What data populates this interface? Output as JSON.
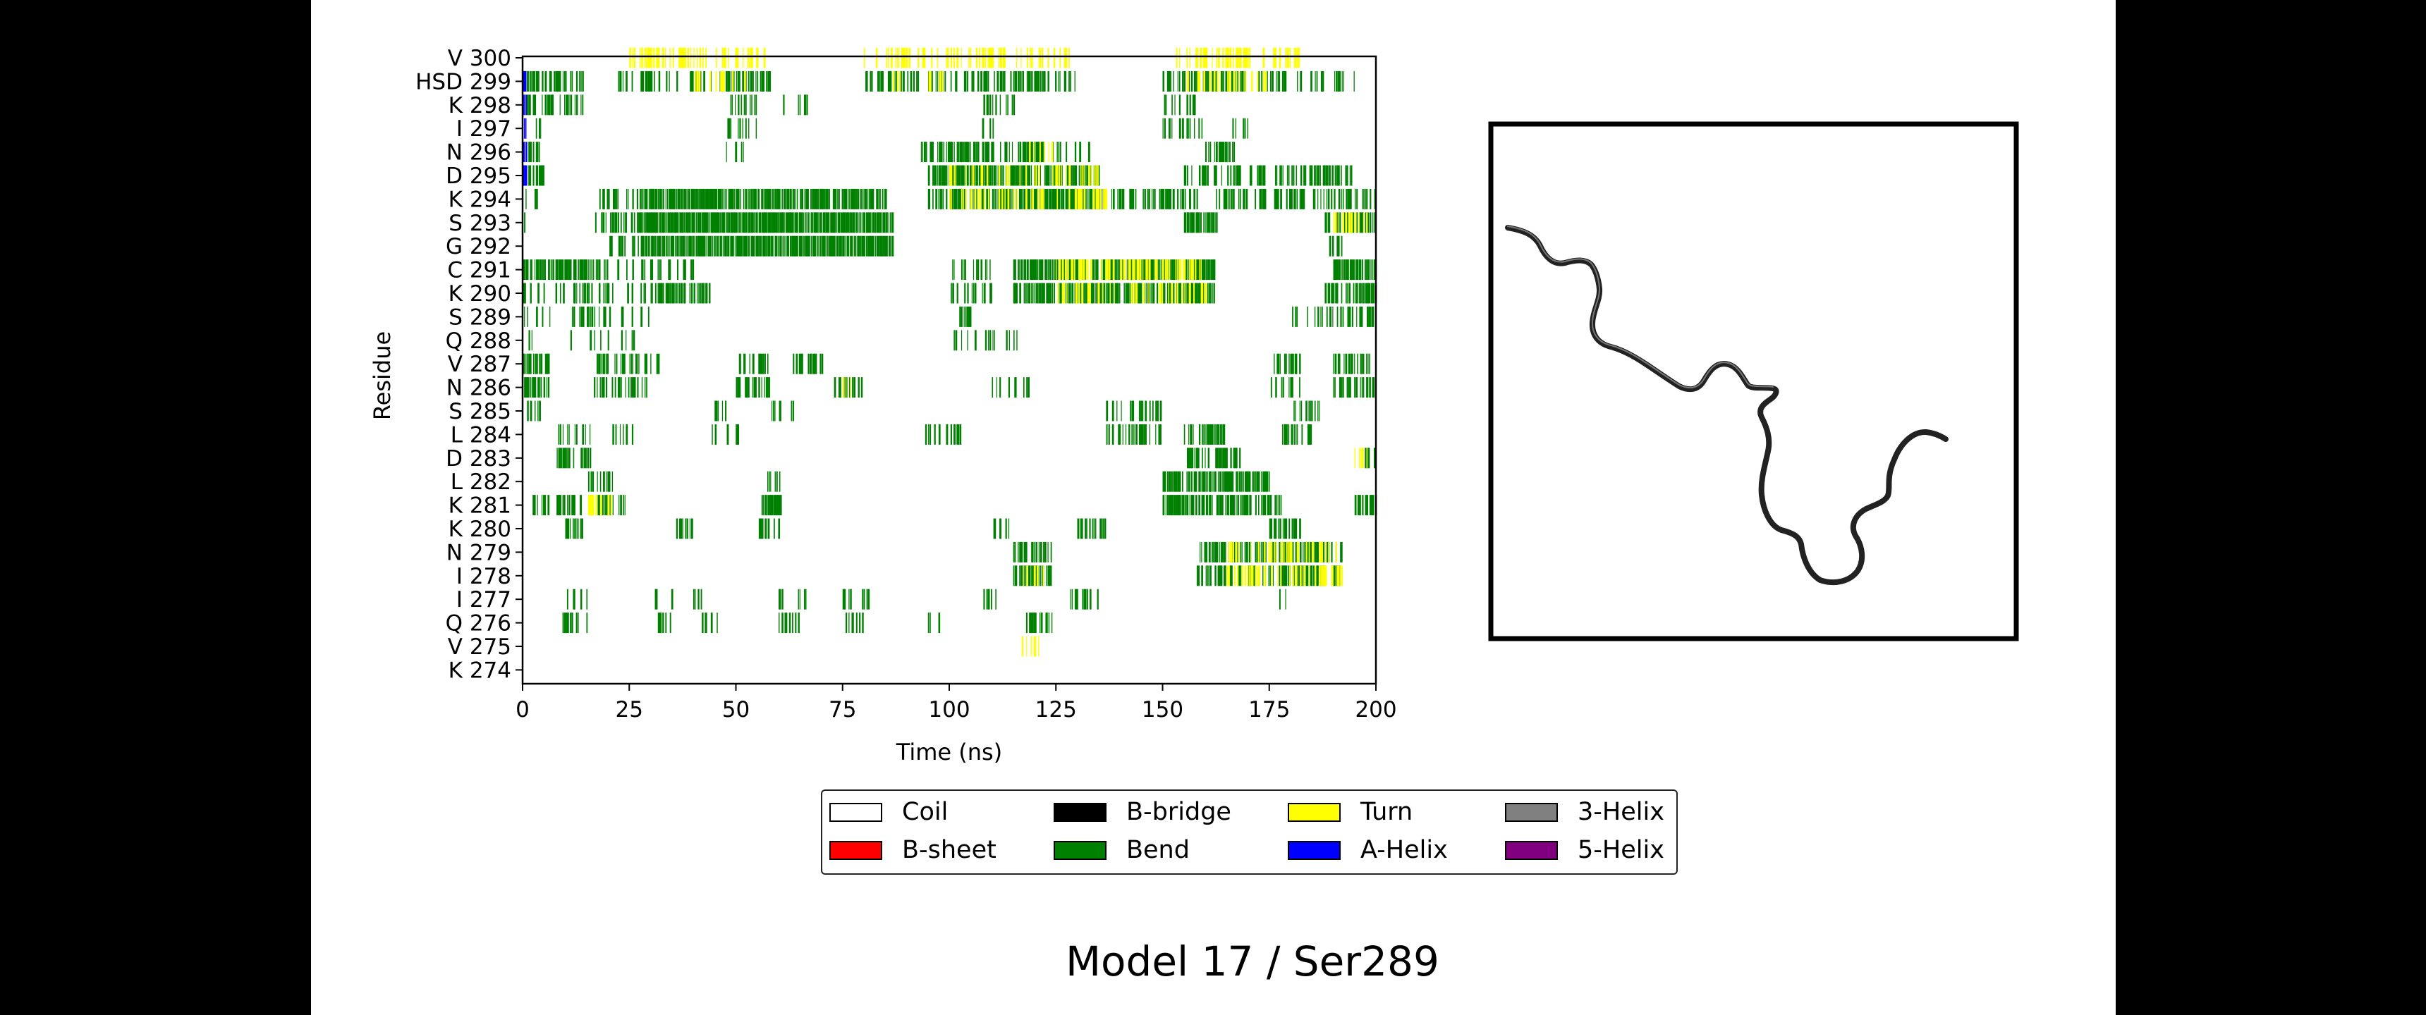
{
  "page_title": "Model 17 / Ser289",
  "chart_data": {
    "type": "heatmap",
    "title": "",
    "xlabel": "Time (ns)",
    "ylabel": "Residue",
    "xlim": [
      0,
      200
    ],
    "xticks": [
      "0",
      "25",
      "50",
      "75",
      "100",
      "125",
      "150",
      "175",
      "200"
    ],
    "residues": [
      "K 274",
      "V 275",
      "Q 276",
      "I 277",
      "I 278",
      "N 279",
      "K 280",
      "K 281",
      "L 282",
      "D 283",
      "L 284",
      "S 285",
      "N 286",
      "V 287",
      "Q 288",
      "S 289",
      "K 290",
      "C 291",
      "G 292",
      "S 293",
      "K 294",
      "D 295",
      "N 296",
      "I 297",
      "K 298",
      "HSD 299",
      "V 300"
    ],
    "legend_placement": "below",
    "legend": [
      {
        "label": "Coil",
        "color": "#ffffff"
      },
      {
        "label": "B-bridge",
        "color": "#000000"
      },
      {
        "label": "Turn",
        "color": "#ffff00"
      },
      {
        "label": "3-Helix",
        "color": "#808080"
      },
      {
        "label": "B-sheet",
        "color": "#ff0000"
      },
      {
        "label": "Bend",
        "color": "#008000"
      },
      {
        "label": "A-Helix",
        "color": "#0000ff"
      },
      {
        "label": "5-Helix",
        "color": "#800080"
      }
    ],
    "segments": [
      {
        "residue": "V 300",
        "intervals": [
          [
            25,
            57,
            "T",
            0.4
          ],
          [
            80,
            128,
            "T",
            0.4
          ],
          [
            150,
            182,
            "T",
            0.4
          ]
        ]
      },
      {
        "residue": "HSD 299",
        "intervals": [
          [
            0,
            1,
            "H",
            1
          ],
          [
            1,
            14,
            "B",
            0.6
          ],
          [
            21,
            58,
            "B",
            0.5
          ],
          [
            80,
            130,
            "B",
            0.5
          ],
          [
            150,
            195,
            "B",
            0.5
          ],
          [
            40,
            52,
            "T",
            0.3
          ],
          [
            85,
            100,
            "T",
            0.3
          ],
          [
            155,
            175,
            "T",
            0.3
          ]
        ]
      },
      {
        "residue": "K 298",
        "intervals": [
          [
            0,
            1,
            "H",
            1
          ],
          [
            1,
            14,
            "B",
            0.6
          ],
          [
            48,
            55,
            "B",
            0.6
          ],
          [
            60,
            67,
            "B",
            0.4
          ],
          [
            108,
            115,
            "B",
            0.5
          ],
          [
            150,
            158,
            "B",
            0.5
          ]
        ]
      },
      {
        "residue": "I 297",
        "intervals": [
          [
            0,
            1,
            "H",
            1
          ],
          [
            1,
            5,
            "B",
            0.4
          ],
          [
            48,
            55,
            "B",
            0.6
          ],
          [
            107,
            112,
            "B",
            0.4
          ],
          [
            150,
            160,
            "B",
            0.4
          ],
          [
            166,
            170,
            "B",
            0.4
          ]
        ]
      },
      {
        "residue": "N 296",
        "intervals": [
          [
            0,
            1,
            "H",
            1
          ],
          [
            1,
            5,
            "B",
            0.5
          ],
          [
            47,
            52,
            "B",
            0.3
          ],
          [
            93,
            133,
            "B",
            0.6
          ],
          [
            160,
            167,
            "B",
            0.6
          ],
          [
            118,
            125,
            "T",
            0.3
          ]
        ]
      },
      {
        "residue": "D 295",
        "intervals": [
          [
            0,
            1,
            "H",
            1
          ],
          [
            1,
            5,
            "B",
            0.5
          ],
          [
            95,
            135,
            "B",
            0.85
          ],
          [
            100,
            135,
            "T",
            0.4
          ],
          [
            155,
            195,
            "B",
            0.5
          ]
        ]
      },
      {
        "residue": "K 294",
        "intervals": [
          [
            0,
            4,
            "B",
            0.3
          ],
          [
            18,
            30,
            "B",
            0.5
          ],
          [
            30,
            85,
            "B",
            0.9
          ],
          [
            95,
            137,
            "B",
            0.85
          ],
          [
            100,
            137,
            "T",
            0.45
          ],
          [
            138,
            200,
            "B",
            0.55
          ]
        ]
      },
      {
        "residue": "S 293",
        "intervals": [
          [
            0,
            2,
            "B",
            0.3
          ],
          [
            17,
            28,
            "B",
            0.5
          ],
          [
            28,
            87,
            "B",
            1.0
          ],
          [
            155,
            163,
            "B",
            0.9
          ],
          [
            188,
            200,
            "B",
            0.7
          ],
          [
            190,
            198,
            "T",
            0.35
          ]
        ]
      },
      {
        "residue": "G 292",
        "intervals": [
          [
            0,
            2,
            "B",
            0.3
          ],
          [
            20,
            28,
            "B",
            0.5
          ],
          [
            28,
            87,
            "B",
            1.0
          ],
          [
            188,
            192,
            "B",
            0.4
          ]
        ]
      },
      {
        "residue": "C 291",
        "intervals": [
          [
            0,
            18,
            "B",
            0.85
          ],
          [
            18,
            40,
            "B",
            0.3
          ],
          [
            100,
            110,
            "B",
            0.5
          ],
          [
            115,
            162,
            "B",
            0.85
          ],
          [
            125,
            160,
            "T",
            0.45
          ],
          [
            190,
            200,
            "B",
            0.9
          ]
        ]
      },
      {
        "residue": "K 290",
        "intervals": [
          [
            0,
            30,
            "B",
            0.35
          ],
          [
            30,
            44,
            "B",
            0.8
          ],
          [
            100,
            110,
            "B",
            0.5
          ],
          [
            115,
            162,
            "B",
            0.85
          ],
          [
            125,
            160,
            "T",
            0.4
          ],
          [
            188,
            200,
            "B",
            0.8
          ]
        ]
      },
      {
        "residue": "S 289",
        "intervals": [
          [
            0,
            30,
            "B",
            0.3
          ],
          [
            102,
            105,
            "B",
            0.5
          ],
          [
            180,
            200,
            "B",
            0.4
          ]
        ]
      },
      {
        "residue": "Q 288",
        "intervals": [
          [
            0,
            28,
            "B",
            0.2
          ],
          [
            100,
            116,
            "B",
            0.3
          ]
        ]
      },
      {
        "residue": "V 287",
        "intervals": [
          [
            0,
            6,
            "B",
            0.6
          ],
          [
            17,
            32,
            "B",
            0.5
          ],
          [
            50,
            58,
            "B",
            0.5
          ],
          [
            63,
            71,
            "B",
            0.6
          ],
          [
            175,
            182,
            "B",
            0.6
          ],
          [
            190,
            200,
            "B",
            0.6
          ]
        ]
      },
      {
        "residue": "N 286",
        "intervals": [
          [
            0,
            6,
            "B",
            0.8
          ],
          [
            16,
            30,
            "B",
            0.4
          ],
          [
            50,
            58,
            "B",
            0.5
          ],
          [
            73,
            80,
            "B",
            0.6
          ],
          [
            75,
            78,
            "T",
            0.5
          ],
          [
            110,
            120,
            "B",
            0.4
          ],
          [
            175,
            182,
            "B",
            0.5
          ],
          [
            190,
            200,
            "B",
            0.6
          ]
        ]
      },
      {
        "residue": "S 285",
        "intervals": [
          [
            0,
            4,
            "B",
            0.3
          ],
          [
            45,
            52,
            "B",
            0.4
          ],
          [
            58,
            65,
            "B",
            0.5
          ],
          [
            135,
            150,
            "B",
            0.4
          ],
          [
            180,
            187,
            "B",
            0.5
          ]
        ]
      },
      {
        "residue": "L 284",
        "intervals": [
          [
            8,
            16,
            "B",
            0.6
          ],
          [
            20,
            26,
            "B",
            0.3
          ],
          [
            44,
            52,
            "B",
            0.4
          ],
          [
            94,
            104,
            "B",
            0.3
          ],
          [
            135,
            150,
            "B",
            0.5
          ],
          [
            155,
            165,
            "B",
            0.6
          ],
          [
            178,
            185,
            "B",
            0.5
          ]
        ]
      },
      {
        "residue": "D 283",
        "intervals": [
          [
            8,
            16,
            "B",
            0.6
          ],
          [
            155,
            168,
            "B",
            0.7
          ],
          [
            196,
            200,
            "B",
            0.5
          ],
          [
            195,
            198,
            "T",
            0.5
          ]
        ]
      },
      {
        "residue": "L 282",
        "intervals": [
          [
            15,
            22,
            "B",
            0.6
          ],
          [
            57,
            61,
            "B",
            0.7
          ],
          [
            150,
            175,
            "B",
            0.85
          ]
        ]
      },
      {
        "residue": "K 281",
        "intervals": [
          [
            2,
            12,
            "B",
            0.5
          ],
          [
            12,
            24,
            "B",
            0.5
          ],
          [
            15,
            22,
            "T",
            0.4
          ],
          [
            56,
            61,
            "B",
            0.7
          ],
          [
            150,
            178,
            "B",
            0.8
          ],
          [
            195,
            200,
            "B",
            0.8
          ]
        ]
      },
      {
        "residue": "K 280",
        "intervals": [
          [
            10,
            14,
            "B",
            0.7
          ],
          [
            36,
            40,
            "B",
            0.8
          ],
          [
            55,
            60,
            "B",
            0.5
          ],
          [
            110,
            115,
            "B",
            0.4
          ],
          [
            130,
            137,
            "B",
            0.5
          ],
          [
            175,
            182,
            "B",
            0.6
          ]
        ]
      },
      {
        "residue": "N 279",
        "intervals": [
          [
            115,
            124,
            "B",
            0.7
          ],
          [
            158,
            192,
            "B",
            0.7
          ],
          [
            165,
            192,
            "T",
            0.5
          ]
        ]
      },
      {
        "residue": "I 278",
        "intervals": [
          [
            115,
            124,
            "B",
            0.8
          ],
          [
            117,
            122,
            "T",
            0.4
          ],
          [
            158,
            192,
            "B",
            0.7
          ],
          [
            165,
            192,
            "T",
            0.5
          ]
        ]
      },
      {
        "residue": "I 277",
        "intervals": [
          [
            9,
            15,
            "B",
            0.4
          ],
          [
            31,
            35,
            "B",
            0.4
          ],
          [
            40,
            45,
            "B",
            0.4
          ],
          [
            60,
            67,
            "B",
            0.4
          ],
          [
            75,
            81,
            "B",
            0.5
          ],
          [
            108,
            112,
            "B",
            0.4
          ],
          [
            128,
            135,
            "B",
            0.4
          ],
          [
            177,
            180,
            "B",
            0.4
          ]
        ]
      },
      {
        "residue": "Q 276",
        "intervals": [
          [
            9,
            15,
            "B",
            0.4
          ],
          [
            31,
            35,
            "B",
            0.4
          ],
          [
            42,
            46,
            "B",
            0.5
          ],
          [
            60,
            66,
            "B",
            0.4
          ],
          [
            75,
            80,
            "B",
            0.5
          ],
          [
            118,
            124,
            "B",
            0.8
          ],
          [
            95,
            98,
            "B",
            0.3
          ]
        ]
      },
      {
        "residue": "V 275",
        "intervals": [
          [
            117,
            121,
            "T",
            0.5
          ]
        ]
      },
      {
        "residue": "K 274",
        "intervals": []
      }
    ],
    "secondary_structure_codes": {
      "H": "A-Helix",
      "B": "Bend",
      "T": "Turn"
    }
  }
}
